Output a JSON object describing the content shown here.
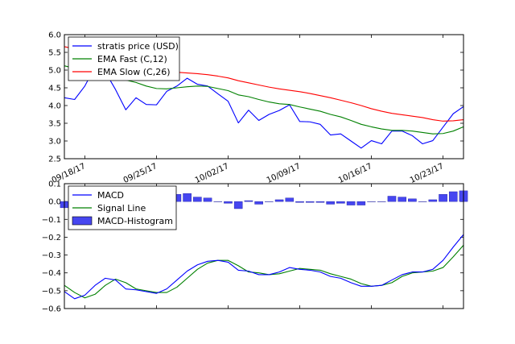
{
  "chart_data": [
    {
      "type": "line",
      "ylim": [
        2.5,
        6.0
      ],
      "y_ticks": [
        "2.5",
        "3.0",
        "3.5",
        "4.0",
        "4.5",
        "5.0",
        "5.5",
        "6.0"
      ],
      "x_tick_labels": [
        "09/18/17",
        "09/25/17",
        "10/02/17",
        "10/09/17",
        "10/16/17",
        "10/23/17"
      ],
      "x_tick_index": [
        2,
        9,
        16,
        23,
        30,
        37
      ],
      "legend_position": "top-left",
      "grid": false,
      "series": [
        {
          "name": "stratis price (USD)",
          "color": "#0000ff",
          "values": [
            4.22,
            4.17,
            4.55,
            5.1,
            4.95,
            4.45,
            3.88,
            4.22,
            4.03,
            4.02,
            4.4,
            4.55,
            4.77,
            4.6,
            4.55,
            4.33,
            4.12,
            3.51,
            3.87,
            3.58,
            3.75,
            3.86,
            4.02,
            3.55,
            3.54,
            3.47,
            3.17,
            3.2,
            3.0,
            2.8,
            3.01,
            2.92,
            3.28,
            3.28,
            3.15,
            2.92,
            3.01,
            3.39,
            3.77,
            3.97
          ]
        },
        {
          "name": "EMA Fast (C,12)",
          "color": "#008000",
          "values": [
            5.12,
            5.05,
            4.98,
            4.92,
            4.85,
            4.78,
            4.72,
            4.65,
            4.55,
            4.48,
            4.47,
            4.5,
            4.53,
            4.55,
            4.54,
            4.48,
            4.42,
            4.3,
            4.25,
            4.17,
            4.1,
            4.05,
            4.03,
            3.96,
            3.9,
            3.84,
            3.75,
            3.68,
            3.58,
            3.47,
            3.4,
            3.34,
            3.3,
            3.3,
            3.28,
            3.24,
            3.2,
            3.21,
            3.28,
            3.4
          ]
        },
        {
          "name": "EMA Slow (C,26)",
          "color": "#ff0000",
          "values": [
            5.66,
            5.6,
            5.54,
            5.46,
            5.38,
            5.3,
            5.22,
            5.13,
            5.05,
            5.0,
            4.97,
            4.94,
            4.92,
            4.9,
            4.87,
            4.83,
            4.78,
            4.7,
            4.64,
            4.58,
            4.52,
            4.47,
            4.43,
            4.39,
            4.34,
            4.28,
            4.22,
            4.15,
            4.08,
            4.0,
            3.91,
            3.84,
            3.78,
            3.74,
            3.7,
            3.66,
            3.6,
            3.56,
            3.57,
            3.6
          ]
        }
      ]
    },
    {
      "type": "line",
      "ylim": [
        -0.6,
        0.1
      ],
      "y_ticks": [
        "−0.6",
        "−0.5",
        "−0.4",
        "−0.3",
        "−0.2",
        "−0.1",
        "0.0",
        "0.1"
      ],
      "legend_position": "top-left",
      "grid": false,
      "series": [
        {
          "name": "MACD",
          "color": "#0000ff",
          "values": [
            -0.505,
            -0.545,
            -0.525,
            -0.47,
            -0.43,
            -0.44,
            -0.49,
            -0.495,
            -0.505,
            -0.515,
            -0.49,
            -0.44,
            -0.39,
            -0.355,
            -0.335,
            -0.33,
            -0.34,
            -0.385,
            -0.39,
            -0.41,
            -0.41,
            -0.395,
            -0.37,
            -0.38,
            -0.385,
            -0.395,
            -0.42,
            -0.43,
            -0.455,
            -0.475,
            -0.475,
            -0.47,
            -0.44,
            -0.41,
            -0.395,
            -0.395,
            -0.38,
            -0.33,
            -0.255,
            -0.185
          ]
        },
        {
          "name": "Signal Line",
          "color": "#008000",
          "values": [
            -0.47,
            -0.51,
            -0.54,
            -0.52,
            -0.47,
            -0.435,
            -0.455,
            -0.49,
            -0.5,
            -0.51,
            -0.51,
            -0.48,
            -0.43,
            -0.38,
            -0.345,
            -0.33,
            -0.33,
            -0.36,
            -0.395,
            -0.4,
            -0.41,
            -0.405,
            -0.39,
            -0.375,
            -0.38,
            -0.385,
            -0.405,
            -0.42,
            -0.435,
            -0.46,
            -0.475,
            -0.47,
            -0.455,
            -0.42,
            -0.4,
            -0.395,
            -0.39,
            -0.37,
            -0.31,
            -0.245
          ]
        },
        {
          "name": "MACD-Histogram",
          "color": "#4646f0",
          "style": "bar",
          "values": [
            -0.035,
            -0.035,
            0.015,
            0.05,
            0.04,
            -0.005,
            -0.035,
            -0.005,
            -0.005,
            -0.005,
            0.02,
            0.04,
            0.045,
            0.025,
            0.02,
            0.0,
            -0.01,
            -0.04,
            0.005,
            -0.015,
            0.0,
            0.01,
            0.02,
            -0.005,
            -0.005,
            -0.005,
            -0.015,
            -0.01,
            -0.02,
            -0.02,
            0.0,
            0.0,
            0.03,
            0.025,
            0.015,
            0.0,
            0.01,
            0.04,
            0.055,
            0.06
          ]
        }
      ]
    }
  ]
}
